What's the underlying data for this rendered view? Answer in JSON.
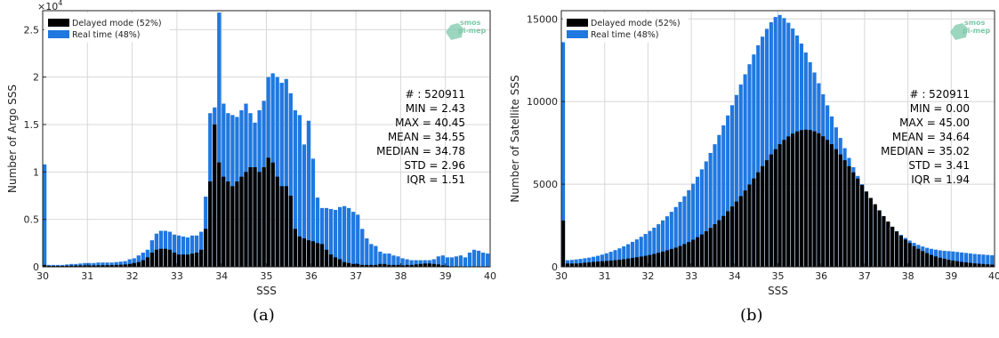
{
  "chart_data": [
    {
      "type": "bar",
      "stacked": true,
      "panel_label": "(a)",
      "xlabel": "SSS",
      "ylabel": "Number of Argo SSS",
      "xlim": [
        30,
        40
      ],
      "ylim": [
        0,
        27000
      ],
      "x_ticks": [
        "30",
        "31",
        "32",
        "33",
        "34",
        "35",
        "36",
        "37",
        "38",
        "39",
        "40"
      ],
      "y_ticks": [
        "0",
        "0.5",
        "1",
        "1.5",
        "2",
        "2.5"
      ],
      "y_exponent": "×10",
      "y_exponent_power": "4",
      "grid": true,
      "legend_position": "top-left",
      "series": [
        {
          "name": "Delayed mode (52%)",
          "color": "#000000"
        },
        {
          "name": "Real time (48%)",
          "color": "#1f78e0"
        }
      ],
      "stats": [
        "# : 520911",
        "MIN = 2.43",
        "MAX =  40.45",
        "MEAN = 34.55",
        "MEDIAN = 34.78",
        "STD = 2.96",
        "IQR = 1.51"
      ],
      "logo": {
        "line1": "smos",
        "line2": "pi-mep"
      },
      "bins": {
        "start": 30,
        "width": 0.1,
        "delayed": [
          200,
          100,
          100,
          100,
          100,
          120,
          130,
          140,
          150,
          150,
          150,
          150,
          160,
          170,
          180,
          180,
          200,
          220,
          250,
          300,
          400,
          500,
          700,
          1000,
          1500,
          1800,
          1900,
          1900,
          1800,
          1500,
          1300,
          1300,
          1300,
          1400,
          1500,
          1800,
          4000,
          9000,
          15000,
          11000,
          9500,
          9000,
          8500,
          9000,
          9500,
          10000,
          10500,
          10500,
          10000,
          10500,
          11500,
          11000,
          9500,
          8500,
          8500,
          7500,
          4000,
          3200,
          3000,
          2800,
          2700,
          2500,
          2400,
          1800,
          1300,
          1000,
          800,
          500,
          400,
          300,
          300,
          200,
          200,
          200,
          200,
          300,
          300,
          200,
          200,
          200,
          150,
          200,
          200,
          250,
          300,
          350,
          350,
          300,
          250,
          150,
          100,
          50,
          50
        ],
        "total": [
          10800,
          200,
          200,
          200,
          200,
          250,
          300,
          300,
          350,
          400,
          400,
          400,
          450,
          450,
          450,
          450,
          500,
          550,
          600,
          800,
          900,
          1200,
          1500,
          1800,
          2800,
          3500,
          3800,
          3800,
          3700,
          3400,
          3300,
          3200,
          3100,
          3300,
          3300,
          3700,
          7400,
          16200,
          16800,
          26800,
          17200,
          16200,
          16000,
          15800,
          16500,
          17200,
          16200,
          15200,
          16500,
          17500,
          20000,
          20400,
          20000,
          19400,
          19800,
          18300,
          16500,
          16000,
          12900,
          15400,
          11400,
          7300,
          6200,
          6200,
          6100,
          6000,
          6300,
          6400,
          6200,
          5800,
          5500,
          4000,
          3000,
          2400,
          2200,
          1600,
          1400,
          1400,
          1200,
          1100,
          900,
          800,
          700,
          700,
          700,
          700,
          700,
          800,
          1100,
          1200,
          1000,
          1000,
          1100,
          1200,
          1000,
          1500,
          1800,
          1700,
          1500,
          1400,
          900,
          600
        ]
      }
    },
    {
      "type": "bar",
      "stacked": true,
      "panel_label": "(b)",
      "xlabel": "SSS",
      "ylabel": "Number of Satellite SSS",
      "xlim": [
        30,
        40
      ],
      "ylim": [
        0,
        15500
      ],
      "x_ticks": [
        "30",
        "31",
        "32",
        "33",
        "34",
        "35",
        "36",
        "37",
        "38",
        "39",
        "40"
      ],
      "y_ticks": [
        "0",
        "5000",
        "10000",
        "15000"
      ],
      "grid": true,
      "legend_position": "top-left",
      "series": [
        {
          "name": "Delayed mode (52%)",
          "color": "#000000"
        },
        {
          "name": "Real time (48%)",
          "color": "#1f78e0"
        }
      ],
      "stats": [
        "# : 520911",
        "MIN = 0.00",
        "MAX =  45.00",
        "MEAN = 34.64",
        "MEDIAN = 35.02",
        "STD = 3.41",
        "IQR = 1.94"
      ],
      "logo": {
        "line1": "smos",
        "line2": "pi-mep"
      },
      "bins": {
        "start": 30,
        "width": 0.1,
        "delayed": [
          2800,
          200,
          200,
          200,
          220,
          250,
          270,
          300,
          320,
          340,
          360,
          380,
          400,
          430,
          460,
          500,
          540,
          580,
          620,
          670,
          720,
          780,
          850,
          920,
          1000,
          1080,
          1160,
          1260,
          1380,
          1500,
          1640,
          1790,
          1960,
          2150,
          2350,
          2580,
          2820,
          3080,
          3360,
          3650,
          3950,
          4280,
          4620,
          4980,
          5350,
          5720,
          6090,
          6450,
          6800,
          7120,
          7420,
          7680,
          7890,
          8060,
          8190,
          8270,
          8300,
          8280,
          8200,
          8080,
          7900,
          7680,
          7420,
          7120,
          6800,
          6450,
          6090,
          5720,
          5340,
          4950,
          4560,
          4170,
          3790,
          3420,
          3070,
          2740,
          2430,
          2140,
          1880,
          1650,
          1440,
          1250,
          1090,
          950,
          830,
          720,
          630,
          550,
          490,
          430,
          380,
          340,
          300,
          270,
          240,
          210,
          190,
          170,
          150,
          130,
          100
        ],
        "total": [
          13600,
          400,
          420,
          450,
          480,
          520,
          560,
          610,
          670,
          740,
          820,
          910,
          1010,
          1120,
          1240,
          1370,
          1510,
          1660,
          1820,
          1990,
          2170,
          2370,
          2580,
          2810,
          3060,
          3330,
          3620,
          3930,
          4270,
          4640,
          5030,
          5450,
          5900,
          6380,
          6890,
          7420,
          7980,
          8560,
          9160,
          9780,
          10400,
          11030,
          11650,
          12260,
          12850,
          13410,
          13930,
          14400,
          14800,
          15120,
          15240,
          15050,
          14770,
          14420,
          14000,
          13510,
          12970,
          12380,
          11760,
          11110,
          10440,
          9770,
          9100,
          8440,
          7800,
          7180,
          6590,
          6030,
          5500,
          5000,
          4540,
          4110,
          3710,
          3340,
          3000,
          2690,
          2410,
          2160,
          1940,
          1750,
          1590,
          1450,
          1330,
          1230,
          1150,
          1090,
          1040,
          1000,
          970,
          950,
          930,
          900,
          870,
          840,
          810,
          780,
          760,
          740,
          720,
          700,
          1900
        ]
      }
    }
  ]
}
